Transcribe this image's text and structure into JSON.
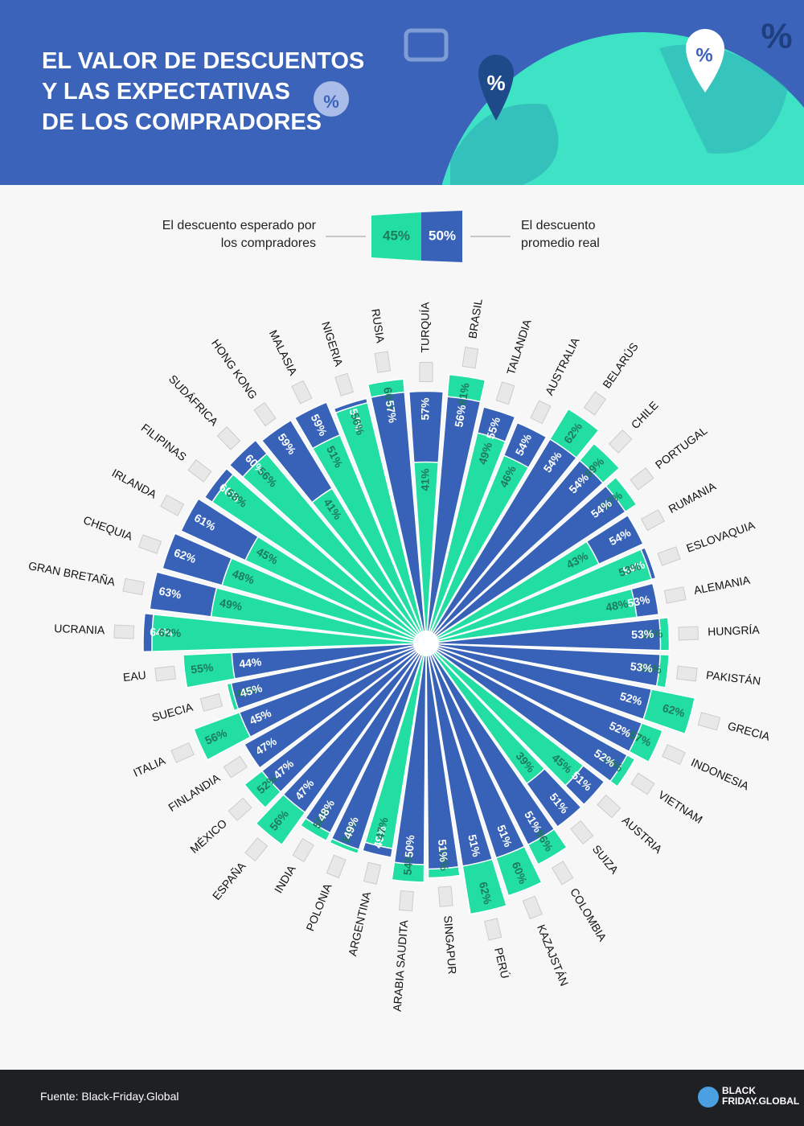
{
  "header": {
    "title_lines": [
      "EL VALOR DE DESCUENTOS",
      "Y LAS EXPECTATIVAS",
      "DE LOS COMPRADORES"
    ],
    "symbols": [
      "%",
      "%",
      "%",
      "%"
    ]
  },
  "chart_data": {
    "type": "radial-bar",
    "categories": [
      "TURQUÍA",
      "BRASIL",
      "TAILANDIA",
      "AUSTRALIA",
      "BELARÚS",
      "CHILE",
      "PORTUGAL",
      "RUMANIA",
      "ESLOVAQUIA",
      "ALEMANIA",
      "HUNGRÍA",
      "PAKISTÁN",
      "GRECIA",
      "INDONESIA",
      "VIETNAM",
      "AUSTRIA",
      "SUIZA",
      "COLOMBIA",
      "KAZAJSTÁN",
      "PERÚ",
      "SINGAPUR",
      "ARABIA SAUDITA",
      "ARGENTINA",
      "POLONIA",
      "INDIA",
      "ESPAÑA",
      "MÉXICO",
      "FINLANDIA",
      "ITALIA",
      "SUECIA",
      "EAU",
      "UCRANIA",
      "GRAN BRETAÑA",
      "CHEQUIA",
      "IRLANDA",
      "FILIPINAS",
      "SUDÁFRICA",
      "HONG KONG",
      "MALASIA",
      "NIGERIA",
      "RUSIA"
    ],
    "series": [
      {
        "name": "El descuento esperado por los compradores",
        "legend_sample": "45%",
        "color": "#22dea3",
        "label_color": "#1f7a5a",
        "values": [
          41,
          61,
          49,
          46,
          62,
          59,
          57,
          43,
          53,
          48,
          55,
          55,
          62,
          57,
          54,
          45,
          39,
          56,
          60,
          62,
          53,
          54,
          47,
          50,
          50,
          56,
          52,
          47,
          56,
          46,
          55,
          62,
          49,
          48,
          45,
          58,
          56,
          41,
          51,
          56,
          60
        ],
        "value_labels": [
          "41%",
          "61%",
          "49%",
          "46%",
          "62%",
          "59%",
          "57%",
          "43%",
          "53%",
          "48%",
          "55%",
          "55%",
          "62%",
          "57%",
          "54%",
          "45%",
          "39%",
          "56%",
          "60%",
          "62%",
          "53%",
          "54%",
          "47%",
          "50%",
          "50%",
          "56%",
          "52%",
          "47%",
          "56%",
          "46%",
          "55%",
          "62%",
          "49%",
          "48%",
          "45%",
          "58%",
          "56%",
          "41%",
          "51%",
          "56%",
          "60%"
        ]
      },
      {
        "name": "El descuento promedio real",
        "legend_sample": "50%",
        "color": "#3762b8",
        "label_color": "#ffffff",
        "values": [
          57,
          56,
          55,
          54,
          54,
          54,
          54,
          54,
          54,
          53,
          53,
          53,
          52,
          52,
          52,
          51,
          51,
          51,
          51,
          51,
          51,
          50,
          49,
          49,
          48,
          47,
          47,
          47,
          45,
          45,
          44,
          64,
          63,
          62,
          61,
          60,
          60,
          59,
          59,
          57,
          57
        ],
        "value_labels": [
          "57%",
          "56%",
          "55%",
          "54%",
          "54%",
          "54%",
          "54%",
          "54%",
          "54%",
          "53%",
          "53%",
          "53%",
          "52%",
          "52%",
          "52%",
          "51%",
          "51%",
          "51%",
          "51%",
          "51%",
          "51%",
          "50%",
          "49%",
          "49%",
          "48%",
          "47%",
          "47%",
          "47%",
          "45%",
          "45%",
          "44%",
          "64%",
          "63%",
          "62%",
          "61%",
          "60%",
          "60%",
          "59%",
          "59%",
          "57%",
          "57%"
        ]
      }
    ]
  },
  "footer": {
    "source": "Fuente: Black-Friday.Global",
    "logo_top": "BLACK",
    "logo_bottom": "FRIDAY.GLOBAL"
  }
}
